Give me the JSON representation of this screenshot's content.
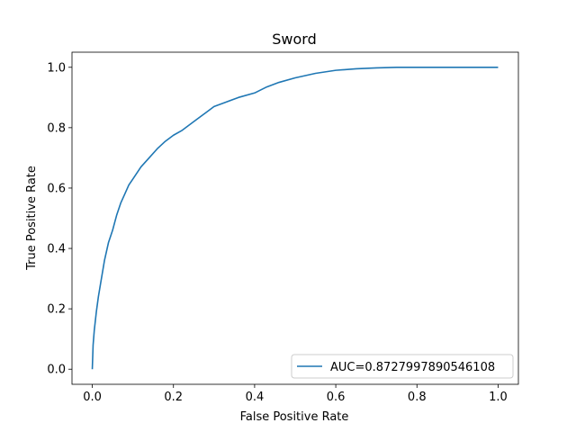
{
  "chart_data": {
    "type": "line",
    "title": "Sword",
    "xlabel": "False Positive Rate",
    "ylabel": "True Positive Rate",
    "xlim": [
      -0.05,
      1.05
    ],
    "ylim": [
      -0.05,
      1.05
    ],
    "xticks": [
      0.0,
      0.2,
      0.4,
      0.6,
      0.8,
      1.0
    ],
    "yticks": [
      0.0,
      0.2,
      0.4,
      0.6,
      0.8,
      1.0
    ],
    "xtick_labels": [
      "0.0",
      "0.2",
      "0.4",
      "0.6",
      "0.8",
      "1.0"
    ],
    "ytick_labels": [
      "0.0",
      "0.2",
      "0.4",
      "0.6",
      "0.8",
      "1.0"
    ],
    "grid": false,
    "legend_position": "bottom-right",
    "series": [
      {
        "name": "AUC=0.8727997890546108",
        "color": "#1f77b4",
        "x": [
          0.0,
          0.002,
          0.005,
          0.01,
          0.015,
          0.02,
          0.03,
          0.04,
          0.05,
          0.06,
          0.07,
          0.08,
          0.09,
          0.1,
          0.12,
          0.14,
          0.16,
          0.18,
          0.2,
          0.22,
          0.25,
          0.28,
          0.3,
          0.33,
          0.36,
          0.4,
          0.43,
          0.46,
          0.5,
          0.55,
          0.6,
          0.65,
          0.7,
          0.75,
          0.8,
          0.9,
          1.0
        ],
        "y": [
          0.0,
          0.08,
          0.13,
          0.19,
          0.24,
          0.28,
          0.36,
          0.42,
          0.46,
          0.51,
          0.55,
          0.58,
          0.61,
          0.63,
          0.67,
          0.7,
          0.73,
          0.755,
          0.775,
          0.79,
          0.82,
          0.85,
          0.87,
          0.885,
          0.9,
          0.915,
          0.935,
          0.95,
          0.965,
          0.98,
          0.99,
          0.995,
          0.998,
          1.0,
          1.0,
          1.0,
          1.0
        ]
      }
    ]
  }
}
